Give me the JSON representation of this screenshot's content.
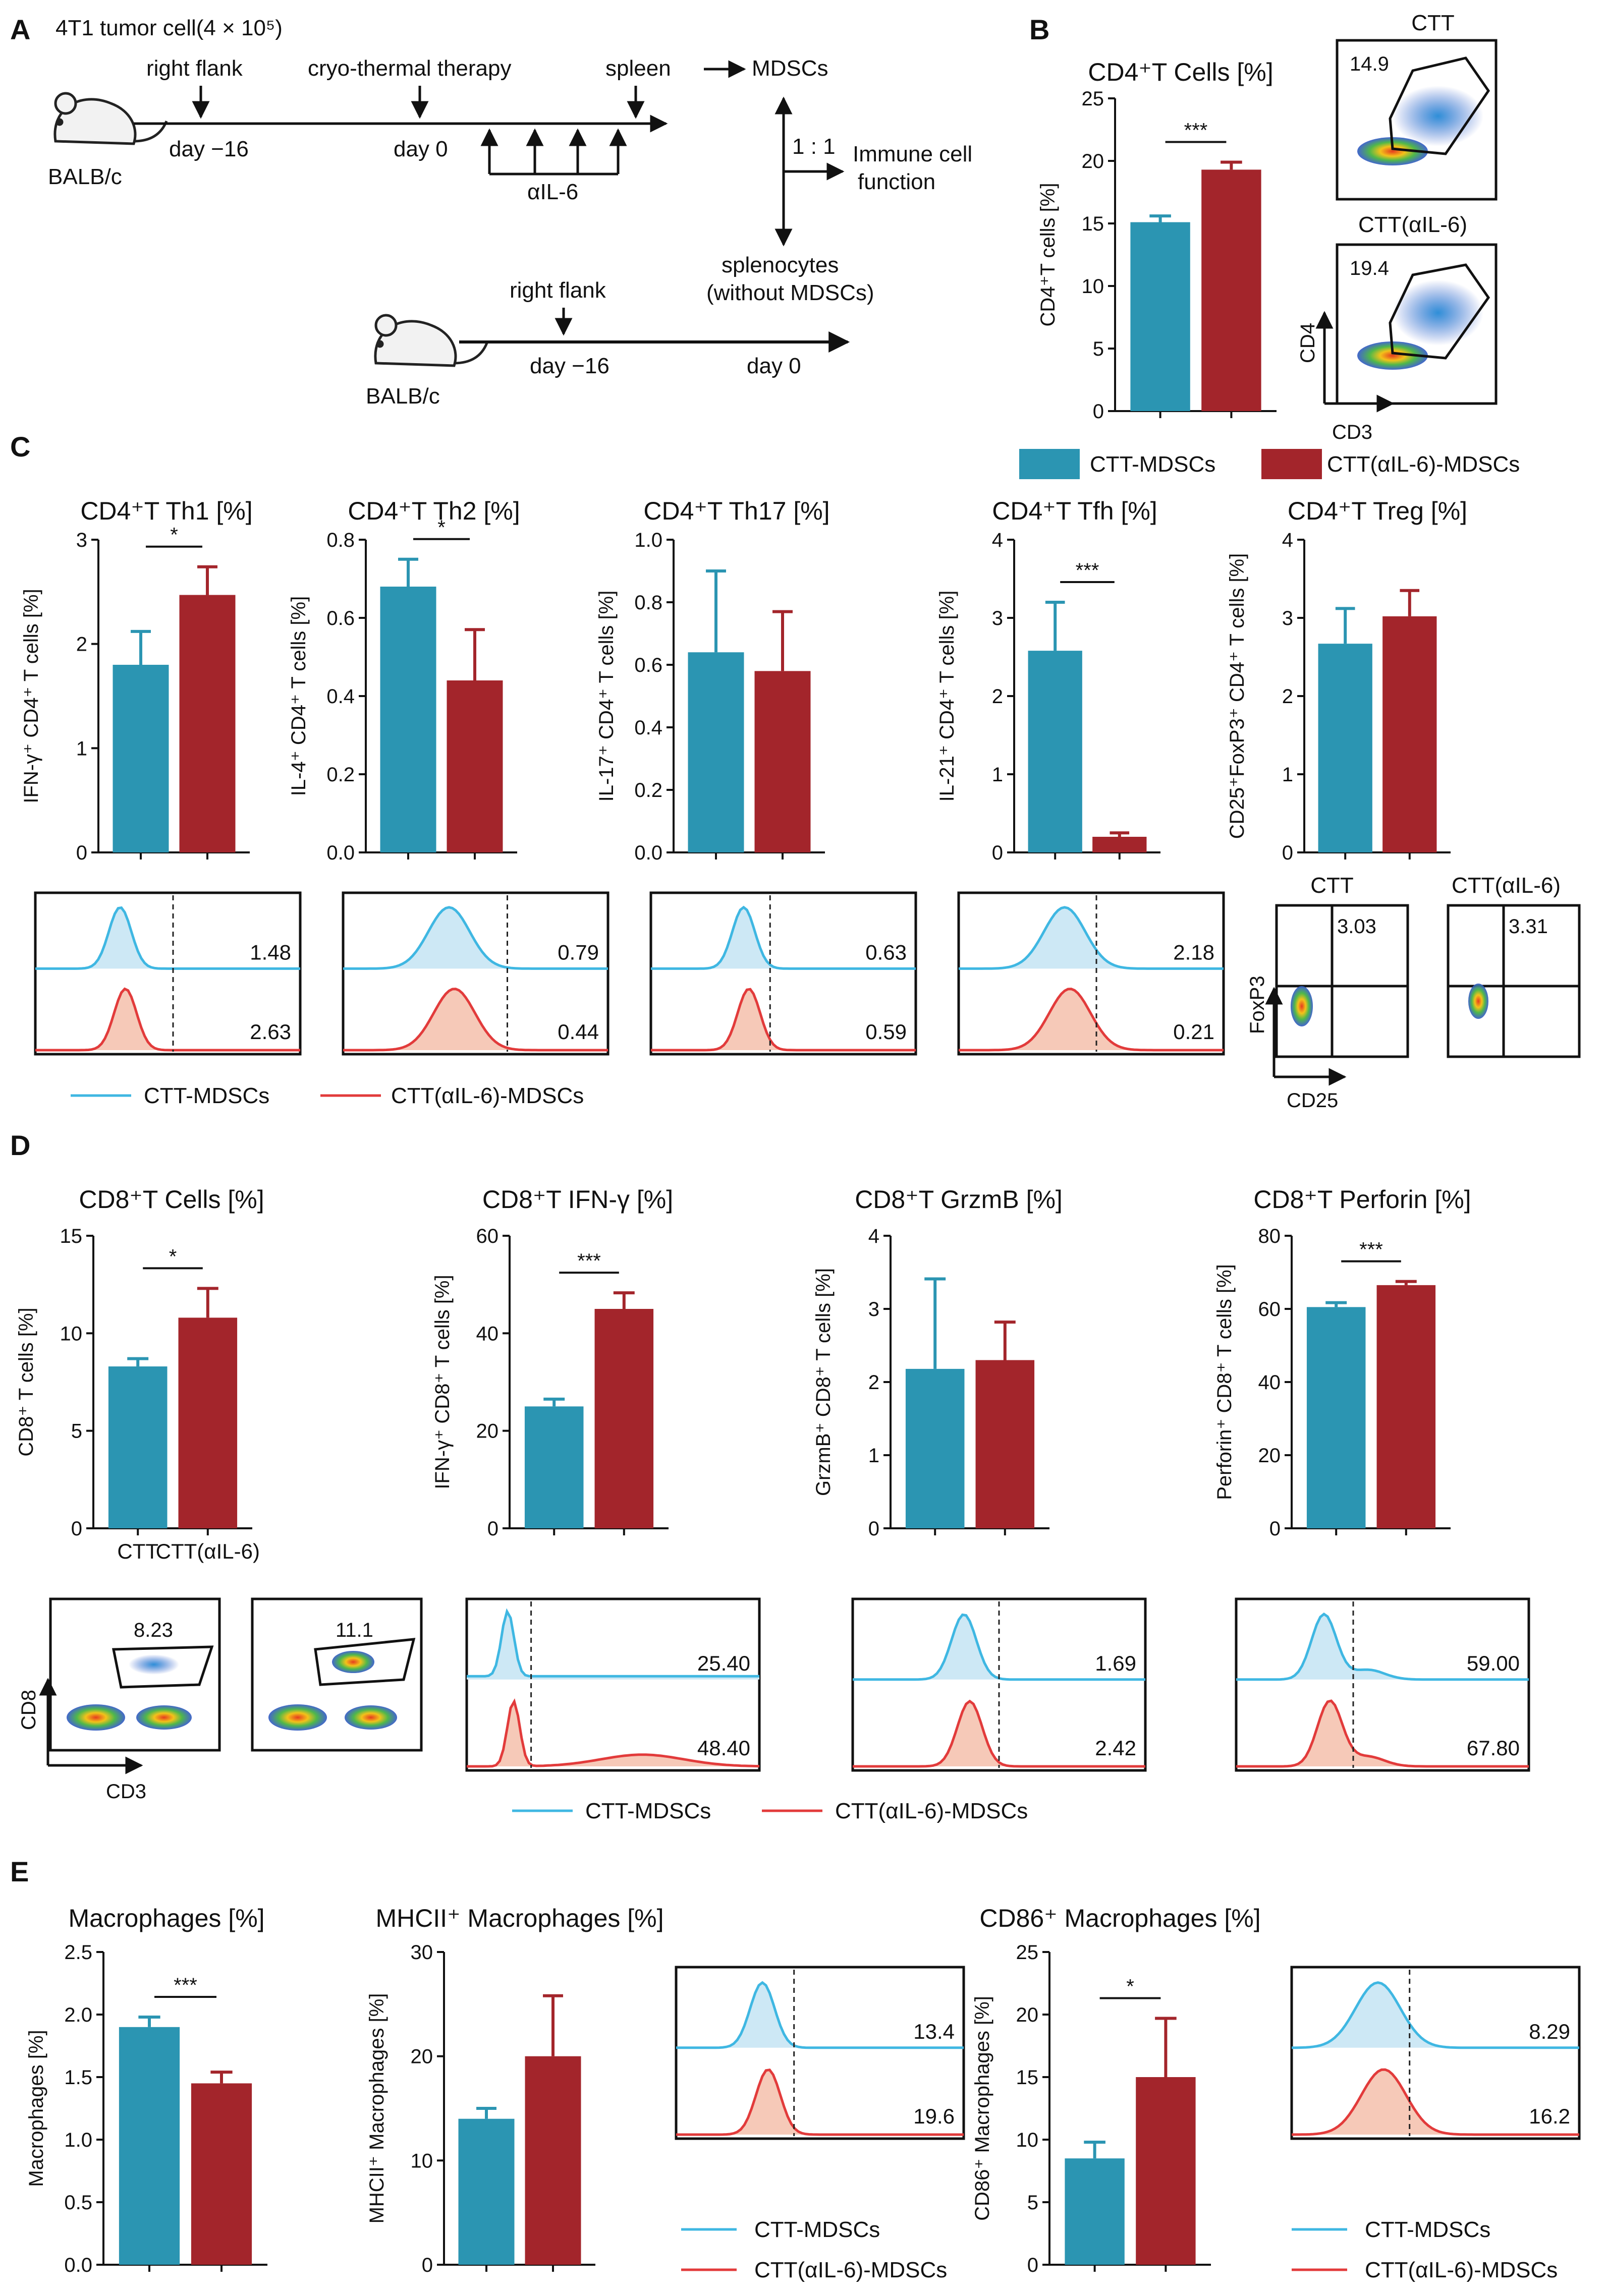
{
  "colors": {
    "ctt": "#2B95B2",
    "aIL6": "#A3252B",
    "histCTT": "#3FB7E2",
    "histCTTfill": "#CDE8F5",
    "histAIL6": "#E23B3B",
    "histAIL6fill": "#F6C9B8",
    "axis": "#111111"
  },
  "panels": {
    "A": {
      "letter": "A",
      "dose": "4T1 tumor cell(4 × 10⁵)",
      "mouse1": "BALB/c",
      "mouse2": "BALB/c",
      "right_flank": "right flank",
      "cryo": "cryo-thermal therapy",
      "spleen": "spleen",
      "mdscs": "MDSCs",
      "day_m16": "day −16",
      "day0": "day 0",
      "ail6": "αIL-6",
      "ratio": "1 : 1",
      "immune1": "Immune cell",
      "immune2": "function",
      "right_flank2": "right flank",
      "spl1": "splenocytes",
      "spl2": "(without MDSCs)",
      "day_m16b": "day −16",
      "day0b": "day 0"
    },
    "B": {
      "letter": "B",
      "flow_ctt_title": "CTT",
      "flow_ctt_val": "14.9",
      "flow_ail6_title": "CTT(αIL-6)",
      "flow_ail6_val": "19.4",
      "xaxis": "CD3",
      "yaxis": "CD4"
    },
    "C": {
      "letter": "C",
      "treg_ctt_title": "CTT",
      "treg_ctt_val": "3.03",
      "treg_ail6_title": "CTT(αIL-6)",
      "treg_ail6_val": "3.31",
      "treg_y": "FoxP3",
      "treg_x": "CD25",
      "legend_ctt": "CTT-MDSCs",
      "legend_ail6": "CTT(αIL-6)-MDSCs"
    },
    "D": {
      "letter": "D",
      "flow_ctt_title": "CTT",
      "flow_ctt_val": "8.23",
      "flow_ail6_title": "CTT(αIL-6)",
      "flow_ail6_val": "11.1",
      "flow_y": "CD8",
      "flow_x": "CD3",
      "legend_ctt": "CTT-MDSCs",
      "legend_ail6": "CTT(αIL-6)-MDSCs"
    },
    "E": {
      "letter": "E",
      "legend_ctt": "CTT-MDSCs",
      "legend_ail6": "CTT(αIL-6)-MDSCs"
    }
  },
  "legend_main": {
    "ctt": "CTT-MDSCs",
    "ail6": "CTT(αIL-6)-MDSCs"
  },
  "chart_data": [
    {
      "id": "b_cd4",
      "type": "bar",
      "title": "CD4⁺T Cells [%]",
      "ylabel": "CD4⁺T cells [%]",
      "categories": [
        "CTT-MDSCs",
        "CTT(αIL-6)-MDSCs"
      ],
      "values": [
        15.1,
        19.3
      ],
      "errors": [
        0.5,
        0.6
      ],
      "ylim": [
        0,
        25
      ],
      "yticks": [
        "0",
        "5",
        "10",
        "15",
        "20",
        "25"
      ],
      "significance": "***",
      "xlabels": []
    },
    {
      "id": "c_th1",
      "type": "bar",
      "title": "CD4⁺T Th1 [%]",
      "ylabel": "IFN-γ⁺ CD4⁺ T cells [%]",
      "categories": [
        "CTT-MDSCs",
        "CTT(αIL-6)-MDSCs"
      ],
      "values": [
        1.8,
        2.47
      ],
      "errors": [
        0.32,
        0.27
      ],
      "ylim": [
        0,
        3
      ],
      "yticks": [
        "0",
        "1",
        "2",
        "3"
      ],
      "significance": "*",
      "xlabels": []
    },
    {
      "id": "c_th2",
      "type": "bar",
      "title": "CD4⁺T Th2 [%]",
      "ylabel": "IL-4⁺ CD4⁺ T cells [%]",
      "categories": [
        "CTT-MDSCs",
        "CTT(αIL-6)-MDSCs"
      ],
      "values": [
        0.68,
        0.44
      ],
      "errors": [
        0.07,
        0.13
      ],
      "ylim": [
        0,
        0.8
      ],
      "yticks": [
        "0.0",
        "0.2",
        "0.4",
        "0.6",
        "0.8"
      ],
      "significance": "*",
      "xlabels": []
    },
    {
      "id": "c_th17",
      "type": "bar",
      "title": "CD4⁺T Th17 [%]",
      "ylabel": "IL-17⁺ CD4⁺ T cells [%]",
      "categories": [
        "CTT-MDSCs",
        "CTT(αIL-6)-MDSCs"
      ],
      "values": [
        0.64,
        0.58
      ],
      "errors": [
        0.26,
        0.19
      ],
      "ylim": [
        0,
        1
      ],
      "yticks": [
        "0.0",
        "0.2",
        "0.4",
        "0.6",
        "0.8",
        "1.0"
      ],
      "significance": "",
      "xlabels": []
    },
    {
      "id": "c_tfh",
      "type": "bar",
      "title": "CD4⁺T Tfh [%]",
      "ylabel": "IL-21⁺ CD4⁺ T cells [%]",
      "categories": [
        "CTT-MDSCs",
        "CTT(αIL-6)-MDSCs"
      ],
      "values": [
        2.58,
        0.2
      ],
      "errors": [
        0.62,
        0.05
      ],
      "ylim": [
        0,
        4
      ],
      "yticks": [
        "0",
        "1",
        "2",
        "3",
        "4"
      ],
      "significance": "***",
      "xlabels": []
    },
    {
      "id": "c_treg",
      "type": "bar",
      "title": "CD4⁺T Treg [%]",
      "ylabel": "CD25⁺FoxP3⁺ CD4⁺ T cells [%]",
      "categories": [
        "CTT-MDSCs",
        "CTT(αIL-6)-MDSCs"
      ],
      "values": [
        2.67,
        3.02
      ],
      "errors": [
        0.45,
        0.33
      ],
      "ylim": [
        0,
        4
      ],
      "yticks": [
        "0",
        "1",
        "2",
        "3",
        "4"
      ],
      "significance": "",
      "xlabels": []
    },
    {
      "id": "d_cd8",
      "type": "bar",
      "title": "CD8⁺T Cells [%]",
      "ylabel": "CD8⁺ T cells [%]",
      "categories": [
        "CTT-MDSCs",
        "CTT(αIL-6)-MDSCs"
      ],
      "values": [
        8.3,
        10.8
      ],
      "errors": [
        0.4,
        1.5
      ],
      "ylim": [
        0,
        15
      ],
      "yticks": [
        "0",
        "5",
        "10",
        "15"
      ],
      "significance": "*",
      "xlabels": [
        "CTT",
        "CTT(αIL-6)"
      ]
    },
    {
      "id": "d_ifng",
      "type": "bar",
      "title": "CD8⁺T IFN-γ [%]",
      "ylabel": "IFN-γ⁺ CD8⁺ T cells [%]",
      "categories": [
        "CTT-MDSCs",
        "CTT(αIL-6)-MDSCs"
      ],
      "values": [
        25,
        45
      ],
      "errors": [
        1.5,
        3.3
      ],
      "ylim": [
        0,
        60
      ],
      "yticks": [
        "0",
        "20",
        "40",
        "60"
      ],
      "significance": "***",
      "xlabels": []
    },
    {
      "id": "d_grzmb",
      "type": "bar",
      "title": "CD8⁺T GrzmB [%]",
      "ylabel": "GrzmB⁺ CD8⁺ T cells [%]",
      "categories": [
        "CTT-MDSCs",
        "CTT(αIL-6)-MDSCs"
      ],
      "values": [
        2.18,
        2.3
      ],
      "errors": [
        1.23,
        0.52
      ],
      "ylim": [
        0,
        4
      ],
      "yticks": [
        "0",
        "1",
        "2",
        "3",
        "4"
      ],
      "significance": "",
      "xlabels": []
    },
    {
      "id": "d_perf",
      "type": "bar",
      "title": "CD8⁺T Perforin [%]",
      "ylabel": "Perforin⁺ CD8⁺ T cells [%]",
      "categories": [
        "CTT-MDSCs",
        "CTT(αIL-6)-MDSCs"
      ],
      "values": [
        60.5,
        66.5
      ],
      "errors": [
        1.2,
        1.0
      ],
      "ylim": [
        0,
        80
      ],
      "yticks": [
        "0",
        "20",
        "40",
        "60",
        "80"
      ],
      "significance": "***",
      "xlabels": []
    },
    {
      "id": "e_mac",
      "type": "bar",
      "title": "Macrophages [%]",
      "ylabel": "Macrophages [%]",
      "categories": [
        "CTT-MDSCs",
        "CTT(αIL-6)-MDSCs"
      ],
      "values": [
        1.9,
        1.45
      ],
      "errors": [
        0.08,
        0.09
      ],
      "ylim": [
        0,
        2.5
      ],
      "yticks": [
        "0.0",
        "0.5",
        "1.0",
        "1.5",
        "2.0",
        "2.5"
      ],
      "significance": "***",
      "xlabels": []
    },
    {
      "id": "e_mhc",
      "type": "bar",
      "title": "MHCII⁺ Macrophages [%]",
      "ylabel": "MHCII⁺ Macrophages [%]",
      "categories": [
        "CTT-MDSCs",
        "CTT(αIL-6)-MDSCs"
      ],
      "values": [
        14,
        20
      ],
      "errors": [
        1,
        5.8
      ],
      "ylim": [
        0,
        30
      ],
      "yticks": [
        "0",
        "10",
        "20",
        "30"
      ],
      "significance": "",
      "xlabels": []
    },
    {
      "id": "e_cd86",
      "type": "bar",
      "title": "CD86⁺ Macrophages [%]",
      "ylabel": "CD86⁺ Macrophages [%]",
      "categories": [
        "CTT-MDSCs",
        "CTT(αIL-6)-MDSCs"
      ],
      "values": [
        8.5,
        15
      ],
      "errors": [
        1.3,
        4.7
      ],
      "ylim": [
        0,
        25
      ],
      "yticks": [
        "0",
        "5",
        "10",
        "15",
        "20",
        "25"
      ],
      "significance": "*",
      "xlabels": []
    }
  ],
  "histograms": [
    {
      "id": "h_th1",
      "top": "1.48",
      "bottom": "2.63"
    },
    {
      "id": "h_th2",
      "top": "0.79",
      "bottom": "0.44"
    },
    {
      "id": "h_th17",
      "top": "0.63",
      "bottom": "0.59"
    },
    {
      "id": "h_tfh",
      "top": "2.18",
      "bottom": "0.21"
    },
    {
      "id": "h_ifng",
      "top": "25.40",
      "bottom": "48.40"
    },
    {
      "id": "h_grzmb",
      "top": "1.69",
      "bottom": "2.42"
    },
    {
      "id": "h_perf",
      "top": "59.00",
      "bottom": "67.80"
    },
    {
      "id": "h_mhc",
      "top": "13.4",
      "bottom": "19.6"
    },
    {
      "id": "h_cd86",
      "top": "8.29",
      "bottom": "16.2"
    }
  ]
}
